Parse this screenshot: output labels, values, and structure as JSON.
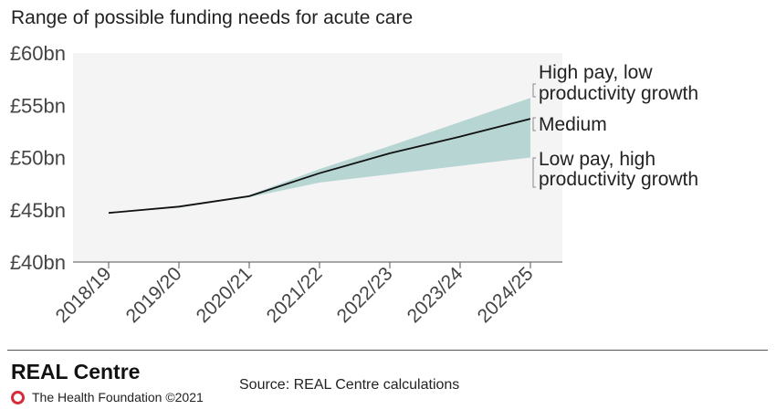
{
  "header": {
    "title": "Range of possible funding needs for acute care"
  },
  "chart_data": {
    "type": "area",
    "title": "Range of possible funding needs for acute care",
    "xlabel": "",
    "ylabel": "",
    "categories": [
      "2018/19",
      "2019/20",
      "2020/21",
      "2021/22",
      "2022/23",
      "2023/24",
      "2024/25"
    ],
    "ylim": [
      40,
      60
    ],
    "yticks": [
      40,
      45,
      50,
      55,
      60
    ],
    "ytick_labels": [
      "£40bn",
      "£45bn",
      "£50bn",
      "£55bn",
      "£60bn"
    ],
    "grid": false,
    "series": [
      {
        "name": "High pay, low productivity growth",
        "values": [
          44.7,
          45.3,
          46.4,
          48.9,
          51.1,
          53.4,
          55.7
        ]
      },
      {
        "name": "Medium",
        "values": [
          44.7,
          45.3,
          46.3,
          48.5,
          50.4,
          52.0,
          53.7
        ]
      },
      {
        "name": "Low pay, high productivity growth",
        "values": [
          44.7,
          45.2,
          46.2,
          47.6,
          48.4,
          49.2,
          50.0
        ]
      }
    ],
    "labels": {
      "high": [
        "High pay, low",
        "productivity growth"
      ],
      "medium": "Medium",
      "low": [
        "Low pay, high",
        "productivity growth"
      ]
    },
    "colors": {
      "band": "#b6d5d3",
      "line": "#111111",
      "plot_bg": "#f4f4f4",
      "axis": "#555555"
    }
  },
  "footer": {
    "brand": "REAL Centre",
    "org": "The Health Foundation ©2021",
    "source": "Source: REAL Centre calculations"
  }
}
